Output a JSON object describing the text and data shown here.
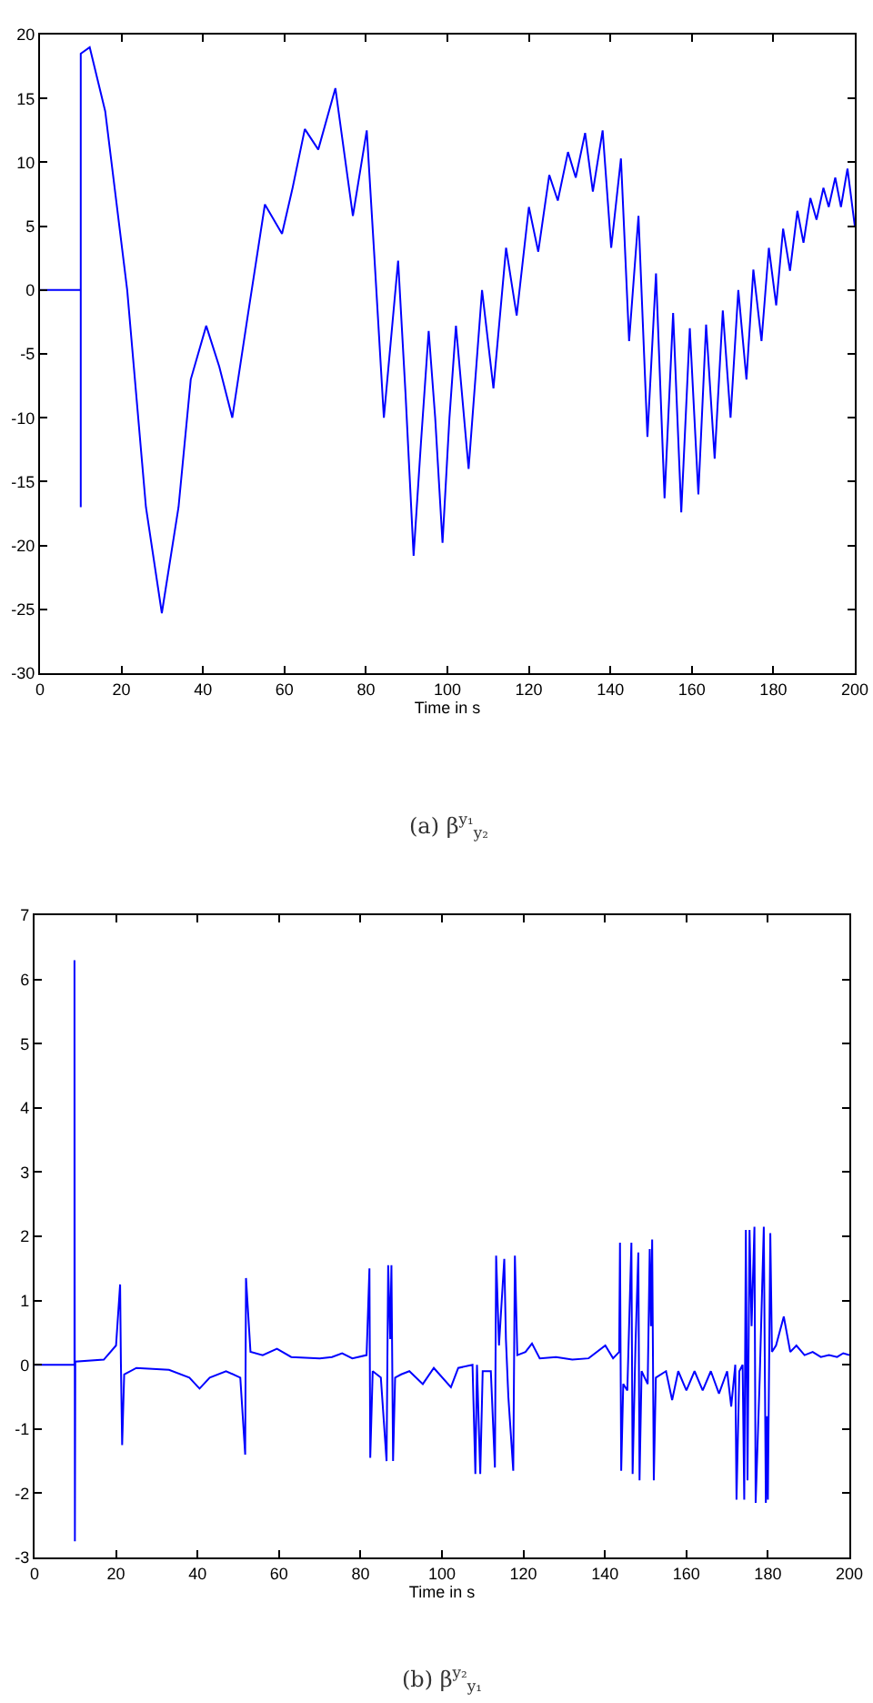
{
  "chart_data": [
    {
      "type": "line",
      "xlabel": "Time in s",
      "annotations": [
        "(a) β$^{y₁}$$_{y₂}$"
      ],
      "xlim": [
        0,
        200
      ],
      "xticks": [
        0,
        20,
        40,
        60,
        80,
        100,
        120,
        140,
        160,
        180,
        200
      ],
      "ylim": [
        -30,
        20
      ],
      "yticks": [
        -30,
        -25,
        -20,
        -15,
        -10,
        -5,
        0,
        5,
        10,
        15,
        20
      ],
      "x": [
        0,
        10,
        10,
        10,
        12.2,
        16,
        21.4,
        26,
        29.9,
        34,
        37,
        40.8,
        44,
        47.2,
        51,
        55.2,
        59.4,
        62,
        65,
        68.3,
        72.5,
        76.8,
        80.2,
        82,
        84.4,
        87.9,
        89.7,
        91.7,
        93.5,
        95.4,
        97,
        98.8,
        100.5,
        102.1,
        105.2,
        108.5,
        111.3,
        114.4,
        117,
        120,
        122.3,
        125,
        127.1,
        129.6,
        131.5,
        133.8,
        135.7,
        138.1,
        140.2,
        142.6,
        144.6,
        146.9,
        149.1,
        151.2,
        153.3,
        155.4,
        157.4,
        159.5,
        161.6,
        163.5,
        165.6,
        167.6,
        169.5,
        171.4,
        173.4,
        175.1,
        177.1,
        178.9,
        180.7,
        182.4,
        184.1,
        185.9,
        187.4,
        189.1,
        190.6,
        192.3,
        193.6,
        195.2,
        196.6,
        198.2,
        200
      ],
      "series": [
        {
          "color": "#0000ff",
          "values": [
            0,
            0,
            -17,
            18.5,
            19,
            14,
            0,
            -17,
            -25.3,
            -17,
            -7,
            -2.8,
            -6,
            -10,
            -2,
            6.7,
            4.4,
            8,
            12.6,
            11,
            15.8,
            5.8,
            12.5,
            3,
            -10,
            2.3,
            -8,
            -20.8,
            -12,
            -3.2,
            -10,
            -19.8,
            -10,
            -2.8,
            -14,
            0,
            -7.7,
            3.3,
            -2,
            6.5,
            3,
            9,
            7,
            10.8,
            8.8,
            12.3,
            7.7,
            12.5,
            3.3,
            10.3,
            -4,
            5.8,
            -11.5,
            1.3,
            -16.3,
            -1.8,
            -17.4,
            -3,
            -16,
            -2.7,
            -13.2,
            -1.6,
            -10,
            0,
            -7,
            1.6,
            -4,
            3.3,
            -1.2,
            4.8,
            1.5,
            6.2,
            3.7,
            7.2,
            5.5,
            8,
            6.5,
            8.8,
            6.5,
            9.5,
            5
          ]
        }
      ]
    },
    {
      "type": "line",
      "xlabel": "Time in s",
      "annotations": [
        "(b) β$^{y₂}$$_{y₁}$"
      ],
      "xlim": [
        0,
        200
      ],
      "xticks": [
        0,
        20,
        40,
        60,
        80,
        100,
        120,
        140,
        160,
        180,
        200
      ],
      "ylim": [
        -3,
        7
      ],
      "yticks": [
        -3,
        -2,
        -1,
        0,
        1,
        2,
        3,
        4,
        5,
        6,
        7
      ],
      "x": [
        0,
        9.8,
        9.8,
        9.9,
        10,
        17,
        20,
        21,
        21.2,
        21.5,
        22,
        25,
        33,
        38,
        40.5,
        43,
        47,
        50.5,
        51.7,
        51.9,
        53,
        56,
        59.5,
        63,
        70,
        73,
        75.5,
        78,
        81.5,
        82.2,
        82.4,
        83,
        85,
        86.4,
        86.8,
        87.3,
        87.6,
        88,
        88.5,
        90,
        92,
        95.3,
        98,
        102.2,
        104,
        107.5,
        108.2,
        108.6,
        109.4,
        110,
        112,
        113,
        113.3,
        114,
        115.3,
        115.7,
        116.3,
        117.5,
        117.9,
        118.5,
        120.5,
        122.1,
        124,
        128,
        132,
        136,
        140.1,
        142,
        143.5,
        143.7,
        144,
        144.5,
        145.5,
        146.5,
        146.8,
        147.5,
        148.2,
        148.5,
        149,
        150.5,
        151,
        151.3,
        151.6,
        152,
        152.5,
        155,
        156.5,
        158,
        160,
        162,
        164,
        166,
        168,
        170,
        171,
        172,
        172.3,
        173,
        173.8,
        174.2,
        174.6,
        175,
        175.5,
        176,
        176.7,
        177,
        178,
        179,
        179.5,
        179.8,
        180,
        180.6,
        181,
        182,
        183.9,
        185.5,
        187,
        189,
        191,
        193,
        195,
        197,
        198.5,
        200
      ],
      "series": [
        {
          "color": "#0000ff",
          "values": [
            0,
            0,
            6.3,
            -2.75,
            0.05,
            0.08,
            0.3,
            1.25,
            0,
            -1.25,
            -0.15,
            -0.05,
            -0.08,
            -0.2,
            -0.37,
            -0.2,
            -0.1,
            -0.2,
            -1.4,
            1.35,
            0.2,
            0.15,
            0.25,
            0.12,
            0.1,
            0.12,
            0.18,
            0.1,
            0.15,
            1.5,
            -1.45,
            -0.1,
            -0.2,
            -1.5,
            1.55,
            0.4,
            1.55,
            -1.5,
            -0.2,
            -0.15,
            -0.1,
            -0.3,
            -0.05,
            -0.35,
            -0.05,
            0,
            -1.7,
            0,
            -1.7,
            -0.1,
            -0.1,
            -1.6,
            1.7,
            0.3,
            1.65,
            0.4,
            -0.5,
            -1.65,
            1.7,
            0.15,
            0.2,
            0.33,
            0.1,
            0.12,
            0.08,
            0.1,
            0.3,
            0.1,
            0.2,
            1.9,
            -1.65,
            -0.3,
            -0.4,
            1.9,
            -1.7,
            0.3,
            1.75,
            -1.8,
            -0.1,
            -0.3,
            1.8,
            0.6,
            1.95,
            -1.8,
            -0.2,
            -0.1,
            -0.55,
            -0.1,
            -0.4,
            -0.1,
            -0.4,
            -0.1,
            -0.45,
            -0.1,
            -0.65,
            0,
            -2.1,
            -0.1,
            0,
            -2.1,
            2.1,
            -1.8,
            2.1,
            0.6,
            2.15,
            -2.15,
            -0.2,
            2.15,
            -2.15,
            -0.8,
            -2.1,
            2.05,
            0.2,
            0.3,
            0.75,
            0.2,
            0.3,
            0.15,
            0.2,
            0.12,
            0.15,
            0.12,
            0.18,
            0.15
          ]
        }
      ]
    }
  ]
}
